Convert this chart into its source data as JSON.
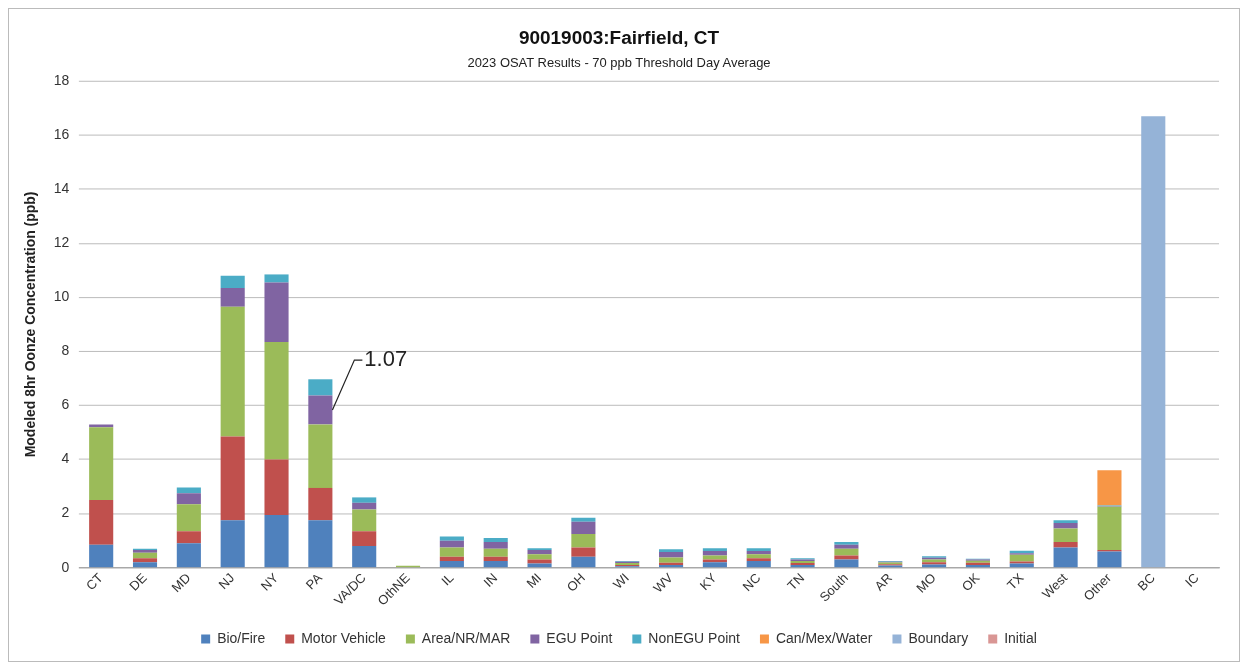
{
  "chart_data": {
    "type": "bar",
    "title": "90019003:Fairfield, CT",
    "subtitle": "2023 OSAT Results - 70 ppb Threshold Day Average",
    "ylabel": "Modeled 8hr Oonze Concentration (ppb)",
    "stacked": true,
    "grid": "y",
    "legend": "bottom",
    "ylim": [
      0,
      18
    ],
    "yticks": [
      0,
      2,
      4,
      6,
      8,
      10,
      12,
      14,
      16,
      18
    ],
    "categories": [
      "CT",
      "DE",
      "MD",
      "NJ",
      "NY",
      "PA",
      "VA/DC",
      "OthNE",
      "IL",
      "IN",
      "MI",
      "OH",
      "WI",
      "WV",
      "KY",
      "NC",
      "TN",
      "South",
      "AR",
      "MO",
      "OK",
      "TX",
      "West",
      "Other",
      "BC",
      "IC"
    ],
    "series": [
      {
        "name": "Bio/Fire",
        "color": "#4f81bd",
        "values": [
          0.85,
          0.2,
          0.9,
          1.75,
          1.95,
          1.75,
          0.8,
          null,
          0.25,
          0.25,
          0.15,
          0.4,
          0.05,
          0.1,
          0.2,
          0.25,
          0.1,
          0.3,
          0.08,
          0.12,
          0.1,
          0.15,
          0.75,
          0.6,
          0,
          0
        ]
      },
      {
        "name": "Motor Vehicle",
        "color": "#c0504d",
        "values": [
          1.65,
          0.15,
          0.45,
          3.1,
          2.05,
          1.2,
          0.55,
          null,
          0.15,
          0.15,
          0.15,
          0.35,
          0.05,
          0.08,
          0.1,
          0.1,
          0.07,
          0.15,
          0.05,
          0.08,
          0.08,
          0.08,
          0.2,
          0.05,
          0,
          0
        ]
      },
      {
        "name": "Area/NR/MAR",
        "color": "#9bbb59",
        "values": [
          2.7,
          0.2,
          1.0,
          4.8,
          4.35,
          2.35,
          0.8,
          0.07,
          0.35,
          0.3,
          0.2,
          0.5,
          0.07,
          0.2,
          0.15,
          0.15,
          0.08,
          0.25,
          0.06,
          0.1,
          0.08,
          0.25,
          0.5,
          1.6,
          0,
          0
        ]
      },
      {
        "name": "EGU Point",
        "color": "#8064a2",
        "values": [
          0.1,
          0.1,
          0.4,
          0.7,
          2.2,
          1.07,
          0.25,
          null,
          0.25,
          0.25,
          0.15,
          0.45,
          0.05,
          0.2,
          0.17,
          0.12,
          0.05,
          0.15,
          0.03,
          0.07,
          0.04,
          0.05,
          0.2,
          0.02,
          0,
          0
        ],
        "value_labels": [
          null,
          null,
          null,
          null,
          null,
          "1.07",
          null,
          null,
          null,
          null,
          null,
          null,
          null,
          null,
          null,
          null,
          null,
          null,
          null,
          null,
          null,
          null,
          null,
          null,
          null,
          null
        ]
      },
      {
        "name": "NonEGU Point",
        "color": "#4bacc6",
        "values": [
          0,
          0.05,
          0.22,
          0.45,
          0.3,
          0.6,
          0.2,
          0,
          0.15,
          0.15,
          0.07,
          0.15,
          0.03,
          0.1,
          0.1,
          0.1,
          0.05,
          0.1,
          0.03,
          0.05,
          0.03,
          0.1,
          0.1,
          0.03,
          0,
          0
        ]
      },
      {
        "name": "Can/Mex/Water",
        "color": "#f79646",
        "values": [
          0,
          0,
          0,
          0,
          null,
          0,
          0,
          0,
          0,
          0,
          0,
          0,
          0,
          0,
          0,
          0,
          0,
          0,
          0,
          0,
          0,
          0,
          0,
          1.3,
          0,
          0
        ]
      },
      {
        "name": "Boundary",
        "color": "#95b3d7",
        "values": [
          0,
          0,
          0,
          0,
          0,
          0,
          0,
          0,
          0,
          0,
          0,
          0,
          0,
          0,
          0,
          0,
          0,
          0,
          0,
          0,
          0,
          0,
          0,
          0,
          16.7,
          0
        ]
      },
      {
        "name": "Initial",
        "color": "#d99694",
        "values": [
          0,
          0,
          0,
          0,
          0,
          0,
          0,
          0,
          0,
          0,
          0,
          0,
          0,
          0,
          0,
          0,
          0,
          0,
          0,
          0,
          0,
          0,
          0,
          0,
          0,
          0
        ]
      }
    ]
  }
}
